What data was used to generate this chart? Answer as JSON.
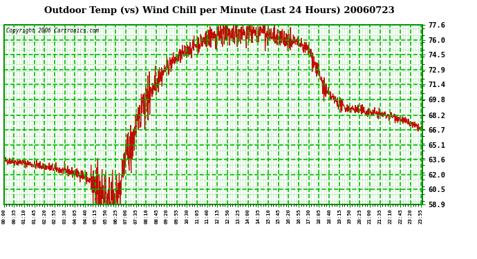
{
  "title": "Outdoor Temp (vs) Wind Chill per Minute (Last 24 Hours) 20060723",
  "copyright": "Copyright 2006 Cartronics.com",
  "ylabel_right": [
    "77.6",
    "76.0",
    "74.5",
    "72.9",
    "71.4",
    "69.8",
    "68.2",
    "66.7",
    "65.1",
    "63.6",
    "62.0",
    "60.5",
    "58.9"
  ],
  "ymin": 58.9,
  "ymax": 77.6,
  "bg_color": "#ffffff",
  "fig_bg_color": "#ffffff",
  "line_color": "#cc0000",
  "grid_color": "#00bb00",
  "title_color": "#000000",
  "border_color": "#008800",
  "x_tick_labels": [
    "00:00",
    "00:35",
    "01:10",
    "01:45",
    "02:20",
    "02:55",
    "03:30",
    "04:05",
    "04:40",
    "05:15",
    "05:50",
    "06:25",
    "07:00",
    "07:35",
    "08:10",
    "08:45",
    "09:20",
    "09:55",
    "10:30",
    "11:05",
    "11:40",
    "12:15",
    "12:50",
    "13:25",
    "14:00",
    "14:35",
    "15:10",
    "15:45",
    "16:20",
    "16:55",
    "17:30",
    "18:05",
    "18:40",
    "19:15",
    "19:50",
    "20:25",
    "21:00",
    "21:35",
    "22:10",
    "22:45",
    "23:20",
    "23:55"
  ],
  "n_points": 1440,
  "figwidth": 6.9,
  "figheight": 3.75,
  "dpi": 100
}
